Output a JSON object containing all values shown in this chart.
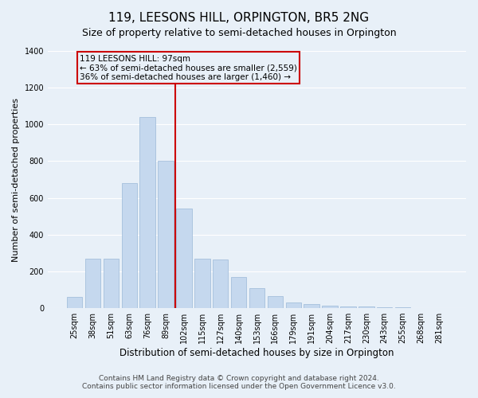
{
  "title": "119, LEESONS HILL, ORPINGTON, BR5 2NG",
  "subtitle": "Size of property relative to semi-detached houses in Orpington",
  "xlabel": "Distribution of semi-detached houses by size in Orpington",
  "ylabel": "Number of semi-detached properties",
  "bar_labels": [
    "25sqm",
    "38sqm",
    "51sqm",
    "63sqm",
    "76sqm",
    "89sqm",
    "102sqm",
    "115sqm",
    "127sqm",
    "140sqm",
    "153sqm",
    "166sqm",
    "179sqm",
    "191sqm",
    "204sqm",
    "217sqm",
    "230sqm",
    "243sqm",
    "255sqm",
    "268sqm",
    "281sqm"
  ],
  "bar_values": [
    60,
    270,
    270,
    680,
    1040,
    800,
    540,
    270,
    265,
    170,
    110,
    65,
    30,
    20,
    15,
    10,
    8,
    5,
    3,
    2,
    1
  ],
  "bar_color": "#c5d8ee",
  "bar_edge_color": "#9ab8d8",
  "bg_color": "#e8f0f8",
  "grid_color": "#ffffff",
  "vline_color": "#cc0000",
  "vline_x": 6.0,
  "annotation_text": "119 LEESONS HILL: 97sqm\n← 63% of semi-detached houses are smaller (2,559)\n36% of semi-detached houses are larger (1,460) →",
  "annotation_box_edge": "#cc0000",
  "footer_line1": "Contains HM Land Registry data © Crown copyright and database right 2024.",
  "footer_line2": "Contains public sector information licensed under the Open Government Licence v3.0.",
  "ylim": [
    0,
    1400
  ],
  "yticks": [
    0,
    200,
    400,
    600,
    800,
    1000,
    1200,
    1400
  ],
  "title_fontsize": 11,
  "subtitle_fontsize": 9,
  "ylabel_fontsize": 8,
  "xlabel_fontsize": 8.5,
  "tick_fontsize": 7,
  "annotation_fontsize": 7.5,
  "footer_fontsize": 6.5
}
